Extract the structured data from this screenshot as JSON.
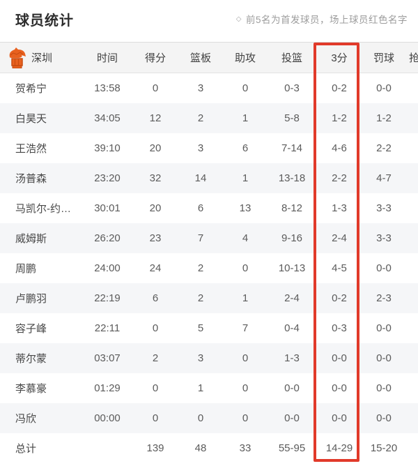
{
  "page": {
    "title": "球员统计",
    "note_bullet": "◇",
    "note": "前5名为首发球员，场上球员红色名字"
  },
  "table": {
    "team": "深圳",
    "team_logo_icon": "shenzhen-leopards-logo",
    "columns": [
      {
        "id": "time",
        "label": "时间"
      },
      {
        "id": "points",
        "label": "得分"
      },
      {
        "id": "rebounds",
        "label": "篮板"
      },
      {
        "id": "assists",
        "label": "助攻"
      },
      {
        "id": "fg",
        "label": "投篮"
      },
      {
        "id": "three",
        "label": "3分"
      },
      {
        "id": "ft",
        "label": "罚球"
      },
      {
        "id": "steals",
        "label": "抢断"
      }
    ],
    "highlight_column_id": "three",
    "rows": [
      {
        "name": "贺希宁",
        "time": "13:58",
        "points": "0",
        "rebounds": "3",
        "assists": "0",
        "fg": "0-3",
        "three": "0-2",
        "ft": "0-0"
      },
      {
        "name": "白昊天",
        "time": "34:05",
        "points": "12",
        "rebounds": "2",
        "assists": "1",
        "fg": "5-8",
        "three": "1-2",
        "ft": "1-2"
      },
      {
        "name": "王浩然",
        "time": "39:10",
        "points": "20",
        "rebounds": "3",
        "assists": "6",
        "fg": "7-14",
        "three": "4-6",
        "ft": "2-2"
      },
      {
        "name": "汤普森",
        "time": "23:20",
        "points": "32",
        "rebounds": "14",
        "assists": "1",
        "fg": "13-18",
        "three": "2-2",
        "ft": "4-7"
      },
      {
        "name": "马凯尔-约…",
        "time": "30:01",
        "points": "20",
        "rebounds": "6",
        "assists": "13",
        "fg": "8-12",
        "three": "1-3",
        "ft": "3-3"
      },
      {
        "name": "威姆斯",
        "time": "26:20",
        "points": "23",
        "rebounds": "7",
        "assists": "4",
        "fg": "9-16",
        "three": "2-4",
        "ft": "3-3"
      },
      {
        "name": "周鹏",
        "time": "24:00",
        "points": "24",
        "rebounds": "2",
        "assists": "0",
        "fg": "10-13",
        "three": "4-5",
        "ft": "0-0"
      },
      {
        "name": "卢鹏羽",
        "time": "22:19",
        "points": "6",
        "rebounds": "2",
        "assists": "1",
        "fg": "2-4",
        "three": "0-2",
        "ft": "2-3"
      },
      {
        "name": "容子峰",
        "time": "22:11",
        "points": "0",
        "rebounds": "5",
        "assists": "7",
        "fg": "0-4",
        "three": "0-3",
        "ft": "0-0"
      },
      {
        "name": "蒂尔蒙",
        "time": "03:07",
        "points": "2",
        "rebounds": "3",
        "assists": "0",
        "fg": "1-3",
        "three": "0-0",
        "ft": "0-0"
      },
      {
        "name": "李慕豪",
        "time": "01:29",
        "points": "0",
        "rebounds": "1",
        "assists": "0",
        "fg": "0-0",
        "three": "0-0",
        "ft": "0-0"
      },
      {
        "name": "冯欣",
        "time": "00:00",
        "points": "0",
        "rebounds": "0",
        "assists": "0",
        "fg": "0-0",
        "three": "0-0",
        "ft": "0-0"
      }
    ],
    "totals": {
      "name": "总计",
      "time": "",
      "points": "139",
      "rebounds": "48",
      "assists": "33",
      "fg": "55-95",
      "three": "14-29",
      "ft": "15-20"
    }
  },
  "colors": {
    "highlight_red": "#e13a2a",
    "logo_orange": "#e8611f",
    "header_bg": "#f4f4f4",
    "zebra_bg": "#f5f6f8"
  }
}
